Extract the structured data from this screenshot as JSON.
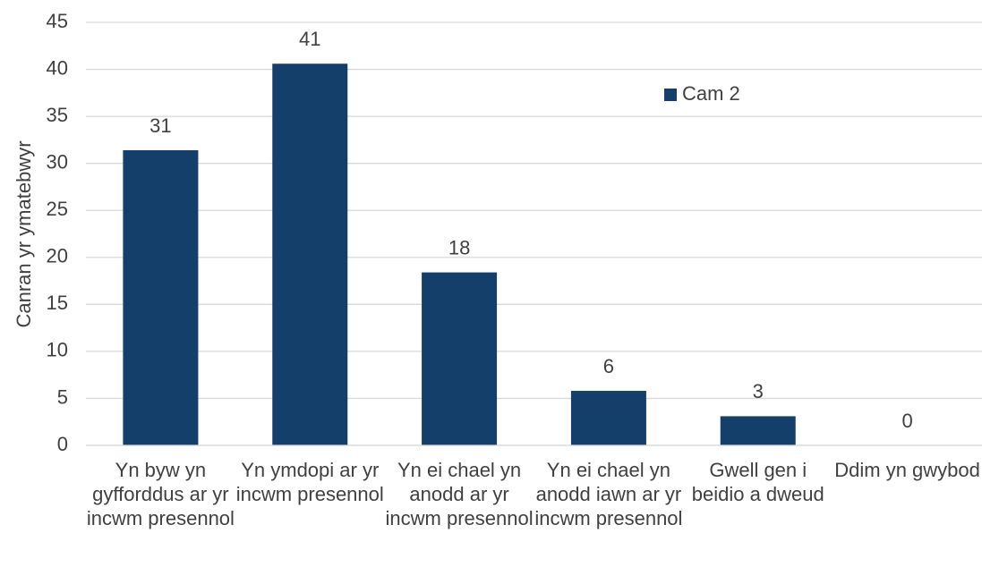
{
  "chart_data": {
    "type": "bar",
    "y_label": "Canran yr ymatebwyr",
    "categories": [
      "Yn byw yn gyfforddus ar yr incwm presennol",
      "Yn ymdopi ar yr incwm presennol",
      "Yn ei chael yn anodd ar yr incwm presennol",
      "Yn ei chael yn anodd iawn ar yr incwm presennol",
      "Gwell gen i beidio a dweud",
      "Ddim yn gwybod"
    ],
    "series": [
      {
        "name": "Cam 2",
        "color": "#143f6b",
        "values": [
          31.4,
          40.6,
          18.4,
          5.8,
          3.1,
          0
        ],
        "value_labels": [
          "31",
          "41",
          "18",
          "6",
          "3",
          "0"
        ]
      }
    ],
    "ylim": [
      0,
      45
    ],
    "yticks": [
      0,
      5,
      10,
      15,
      20,
      25,
      30,
      35,
      40,
      45
    ],
    "grid": true,
    "legend": "top-right"
  }
}
